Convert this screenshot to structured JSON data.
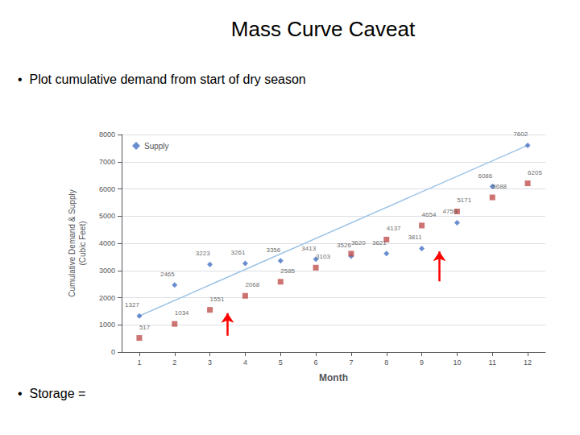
{
  "chart_data": {
    "type": "scatter",
    "title": "Mass Curve Caveat",
    "annotations": [
      "•  Plot cumulative demand from start of dry season",
      "•  Storage ="
    ],
    "xlabel": "Month",
    "ylabel": "Cumulative Demand & Supply\n(Cubic Feet)",
    "series": [
      {
        "type": "line",
        "color": "#9dc3e6",
        "x": [
          1,
          12
        ],
        "values": [
          1327,
          7602
        ]
      },
      {
        "name": "Supply",
        "color": "#4472c4",
        "marker": "diamond",
        "x": [
          1,
          2,
          3,
          4,
          5,
          6,
          7,
          8,
          9,
          10,
          11,
          12
        ],
        "values": [
          1327,
          2465,
          3223,
          3261,
          3356,
          3413,
          3526,
          3621,
          3811,
          4759,
          6086,
          7602
        ]
      },
      {
        "color": "#c0504d",
        "marker": "square",
        "x": [
          1,
          2,
          3,
          4,
          5,
          6,
          7,
          8,
          9,
          10,
          11,
          12
        ],
        "values": [
          517,
          1034,
          1551,
          2068,
          2585,
          3103,
          3620,
          4137,
          4654,
          5171,
          5688,
          6205
        ]
      }
    ],
    "arrows": [
      {
        "x": 3.5,
        "y_start": 600,
        "y_end": 1430,
        "color": "red"
      },
      {
        "x": 9.5,
        "y_start": 2600,
        "y_end": 3700,
        "color": "red"
      }
    ],
    "data_labels": true,
    "xlim": [
      0.5,
      12.5
    ],
    "xticks": [
      1,
      2,
      3,
      4,
      5,
      6,
      7,
      8,
      9,
      10,
      11,
      12
    ],
    "ylim": [
      0,
      8000
    ],
    "yticks": [
      0,
      1000,
      2000,
      3000,
      4000,
      5000,
      6000,
      7000,
      8000
    ],
    "grid": true,
    "legend": "upper left"
  }
}
